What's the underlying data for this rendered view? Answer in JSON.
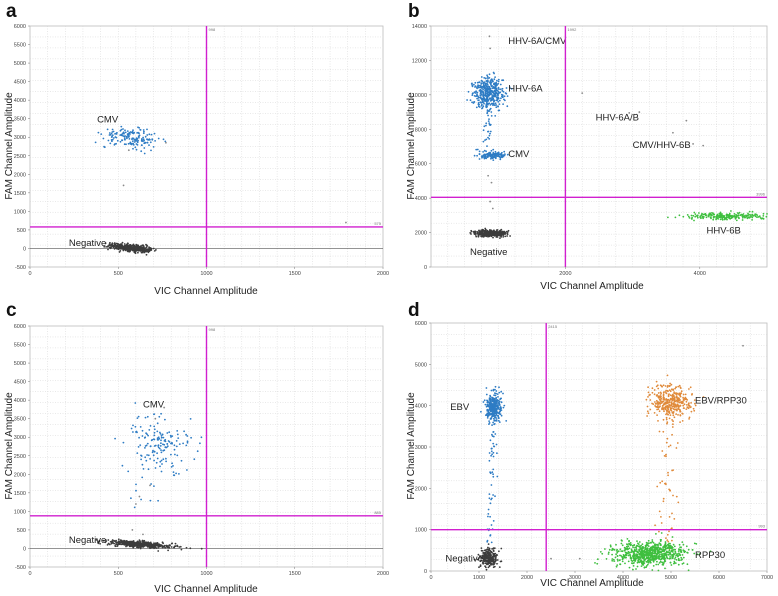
{
  "chart_data": [
    {
      "type": "scatter",
      "panel": "a",
      "xlabel": "VIC Channel Amplitude",
      "ylabel": "FAM Channel Amplitude",
      "xlim": [
        0,
        2000
      ],
      "ylim": [
        -500,
        6000
      ],
      "xticks": [
        0,
        500,
        1000,
        1500,
        2000
      ],
      "yticks": [
        -500,
        0,
        500,
        1000,
        1500,
        2000,
        2500,
        3000,
        3500,
        4000,
        4500,
        5000,
        5500,
        6000
      ],
      "vertical_threshold": 1000,
      "vertical_threshold_label": "998",
      "horizontal_threshold": 580,
      "horizontal_threshold_label": "575",
      "zero_line": true,
      "clusters": [
        {
          "name": "CMV",
          "color": "#2e7cc4",
          "cx": 580,
          "cy": 2980,
          "sx": 80,
          "sy": 120,
          "n": 170,
          "label_x": 380,
          "label_y": 3400
        },
        {
          "name": "Negative",
          "color": "#3c3c3c",
          "cx": 570,
          "cy": 20,
          "sx": 55,
          "sy": 45,
          "n": 520,
          "label_x": 220,
          "label_y": 60
        }
      ],
      "outliers": [
        [
          1790,
          700
        ],
        [
          530,
          1700
        ],
        [
          560,
          2650
        ],
        [
          770,
          2850
        ]
      ]
    },
    {
      "type": "scatter",
      "panel": "b",
      "xlabel": "VIC Channel Amplitude",
      "ylabel": "FAM Channel Amplitude",
      "xlim": [
        0,
        5000
      ],
      "ylim": [
        0,
        14000
      ],
      "xticks": [
        2000,
        4000
      ],
      "yticks": [
        0,
        2000,
        4000,
        6000,
        8000,
        10000,
        12000,
        14000
      ],
      "vertical_threshold": 2000,
      "vertical_threshold_label": "1992",
      "horizontal_threshold": 4050,
      "horizontal_threshold_label": "3996",
      "zero_line": false,
      "clusters": [
        {
          "name": "HHV-6A",
          "color": "#2e7cc4",
          "cx": 860,
          "cy": 10100,
          "sx": 110,
          "sy": 450,
          "n": 450,
          "label_x": 1150,
          "label_y": 10200
        },
        {
          "name": "CMV",
          "color": "#2e7cc4",
          "cx": 900,
          "cy": 6500,
          "sx": 100,
          "sy": 130,
          "n": 120,
          "label_x": 1150,
          "label_y": 6400
        },
        {
          "name": "HHV-6B",
          "color": "#3fbf3f",
          "cx": 4450,
          "cy": 2950,
          "sx": 330,
          "sy": 90,
          "n": 230,
          "label_x": 4100,
          "label_y": 1950
        },
        {
          "name": "Negative",
          "color": "#3c3c3c",
          "cx": 880,
          "cy": 1950,
          "sx": 110,
          "sy": 90,
          "n": 380,
          "label_x": 580,
          "label_y": 700
        }
      ],
      "annotations": [
        {
          "text": "HHV-6A/CMV",
          "x": 1150,
          "y": 12950
        },
        {
          "text": "HHV-6A/B",
          "x": 2450,
          "y": 8500
        },
        {
          "text": "CMV/HHV-6B",
          "x": 3000,
          "y": 6900
        }
      ],
      "outliers": [
        [
          870,
          13400
        ],
        [
          880,
          12700
        ],
        [
          2250,
          10100
        ],
        [
          2950,
          8950
        ],
        [
          3100,
          9000
        ],
        [
          3800,
          8500
        ],
        [
          3900,
          7150
        ],
        [
          4050,
          7050
        ],
        [
          3600,
          7800
        ],
        [
          900,
          4900
        ],
        [
          850,
          5300
        ],
        [
          880,
          3800
        ],
        [
          920,
          3400
        ]
      ]
    },
    {
      "type": "scatter",
      "panel": "c",
      "xlabel": "VIC Channel Amplitude",
      "ylabel": "FAM Channel Amplitude",
      "xlim": [
        0,
        2000
      ],
      "ylim": [
        -500,
        6000
      ],
      "xticks": [
        0,
        500,
        1000,
        1500,
        2000
      ],
      "yticks": [
        -500,
        0,
        500,
        1000,
        1500,
        2000,
        2500,
        3000,
        3500,
        4000,
        4500,
        5000,
        5500,
        6000
      ],
      "vertical_threshold": 1000,
      "vertical_threshold_label": "998",
      "horizontal_threshold": 880,
      "horizontal_threshold_label": "885",
      "zero_line": true,
      "clusters": [
        {
          "name": "CMV",
          "color": "#2e7cc4",
          "cx": 740,
          "cy": 2850,
          "sx": 85,
          "sy": 380,
          "n": 170,
          "label_x": 640,
          "label_y": 3800
        },
        {
          "name": "Negative",
          "color": "#3c3c3c",
          "cx": 620,
          "cy": 110,
          "sx": 95,
          "sy": 40,
          "n": 520,
          "label_x": 220,
          "label_y": 150
        }
      ],
      "outliers": [
        [
          760,
          3800
        ],
        [
          710,
          3500
        ],
        [
          680,
          1700
        ],
        [
          620,
          1400
        ],
        [
          600,
          1200
        ],
        [
          580,
          500
        ],
        [
          640,
          380
        ]
      ]
    },
    {
      "type": "scatter",
      "panel": "d",
      "xlabel": "VIC Channel Amplitude",
      "ylabel": "FAM Channel Amplitude",
      "xlim": [
        0,
        7000
      ],
      "ylim": [
        0,
        6000
      ],
      "xticks": [
        0,
        1000,
        2000,
        3000,
        4000,
        5000,
        6000,
        7000
      ],
      "yticks": [
        0,
        1000,
        2000,
        3000,
        4000,
        5000,
        6000
      ],
      "vertical_threshold": 2400,
      "vertical_threshold_label": "2415",
      "horizontal_threshold": 1000,
      "horizontal_threshold_label": "993",
      "zero_line": false,
      "clusters": [
        {
          "name": "EBV",
          "color": "#2e7cc4",
          "cx": 1320,
          "cy": 3950,
          "sx": 90,
          "sy": 180,
          "n": 380,
          "label_x": 400,
          "label_y": 3900
        },
        {
          "name": "EBV/RPP30",
          "color": "#e08a3a",
          "cx": 5000,
          "cy": 4100,
          "sx": 220,
          "sy": 200,
          "n": 420,
          "label_x": 5500,
          "label_y": 4050
        },
        {
          "name": "RPP30",
          "color": "#3fbf3f",
          "cx": 4550,
          "cy": 420,
          "sx": 380,
          "sy": 150,
          "n": 750,
          "label_x": 5500,
          "label_y": 320
        },
        {
          "name": "Negative",
          "color": "#3c3c3c",
          "cx": 1200,
          "cy": 300,
          "sx": 90,
          "sy": 110,
          "n": 260,
          "label_x": 300,
          "label_y": 230
        }
      ],
      "outliers": [
        [
          6500,
          5450
        ],
        [
          2500,
          300
        ],
        [
          3100,
          300
        ]
      ]
    }
  ]
}
